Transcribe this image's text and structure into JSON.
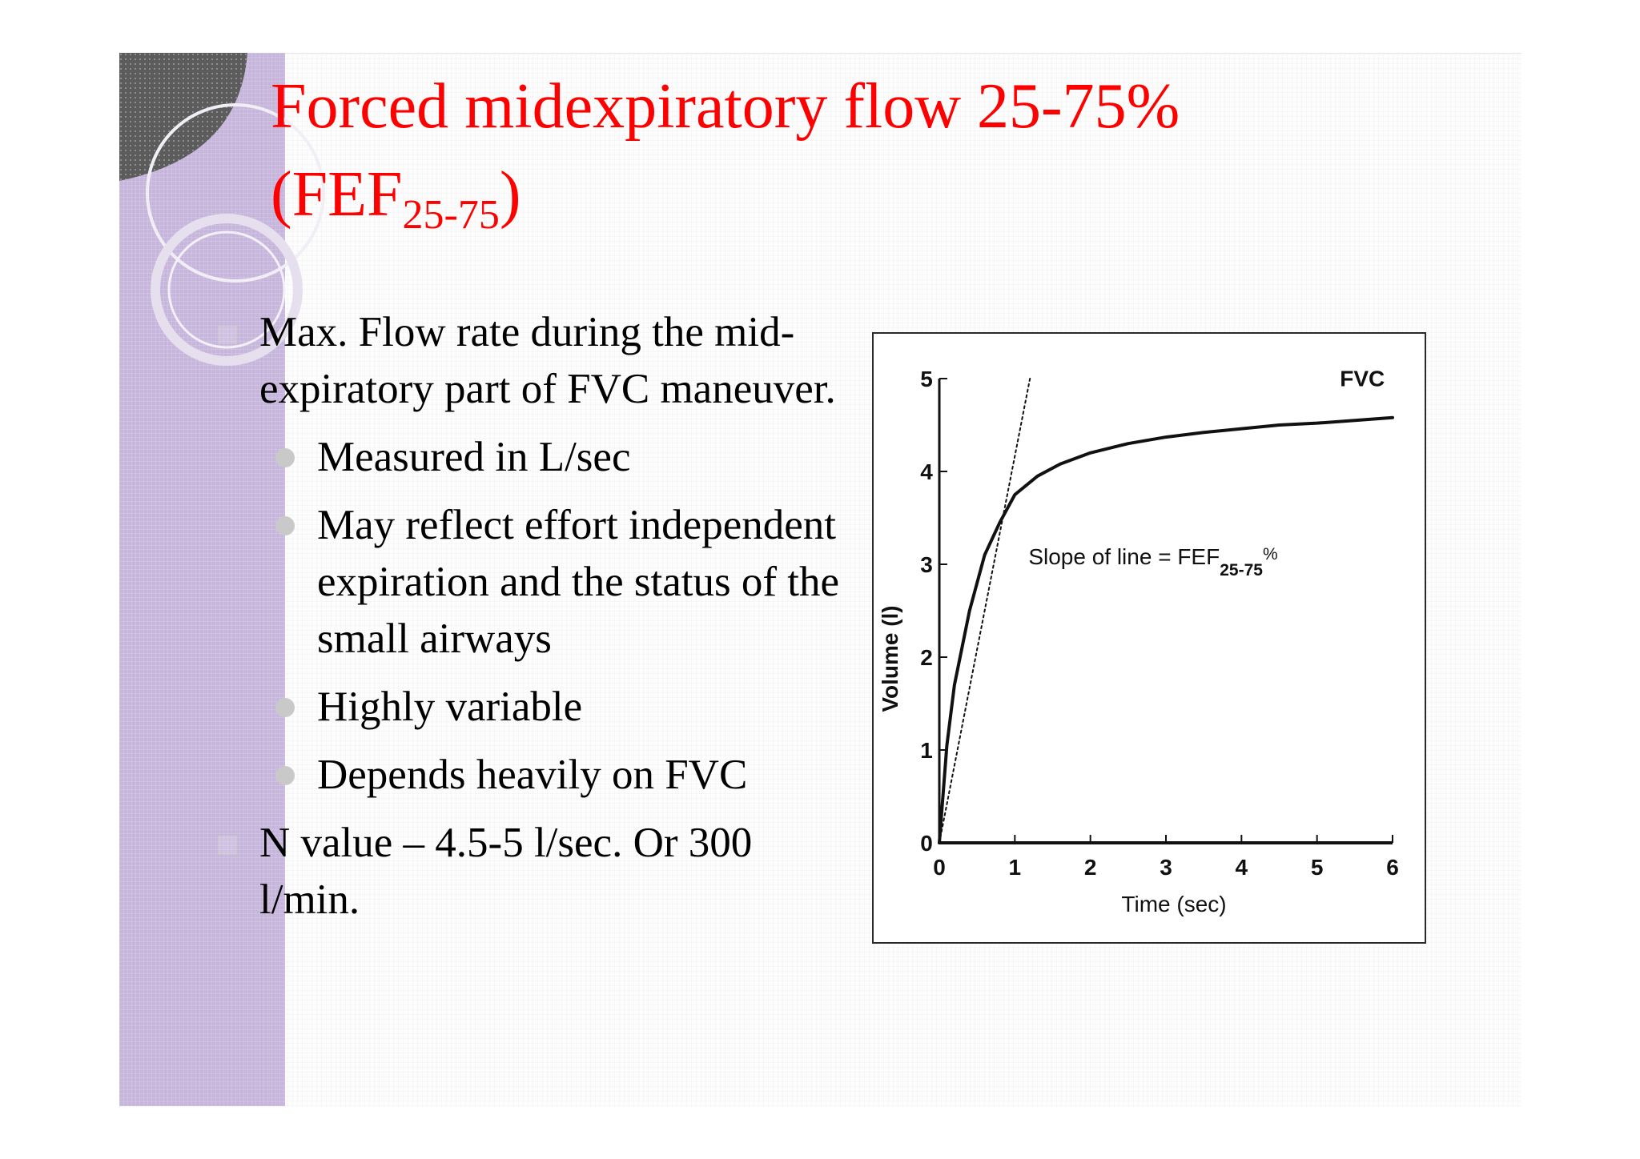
{
  "slide": {
    "title_main": "Forced midexpiratory flow 25-75%",
    "title_abbrev": "(FEF",
    "title_sub": "25-75",
    "title_close": ")",
    "bullets": [
      {
        "level": 1,
        "text": "Max. Flow rate during the mid-expiratory part of FVC maneuver."
      },
      {
        "level": 2,
        "text": "Measured in L/sec"
      },
      {
        "level": 2,
        "text": "May reflect effort independent expiration and the status of the small airways"
      },
      {
        "level": 2,
        "text": "Highly variable"
      },
      {
        "level": 2,
        "text": "Depends heavily on FVC"
      },
      {
        "level": 1,
        "text": "N value – 4.5-5 l/sec. Or 300 l/min."
      }
    ]
  },
  "chart_data": {
    "type": "line",
    "xlabel": "Time (sec)",
    "ylabel": "Volume (l)",
    "xlim": [
      0,
      6
    ],
    "ylim": [
      0,
      5
    ],
    "x_ticks": [
      0,
      1,
      2,
      3,
      4,
      5,
      6
    ],
    "y_ticks": [
      0,
      1,
      2,
      3,
      4,
      5
    ],
    "grid": false,
    "series": [
      {
        "name": "FVC",
        "style": "solid",
        "x": [
          0,
          0.1,
          0.2,
          0.4,
          0.6,
          0.8,
          1.0,
          1.3,
          1.6,
          2.0,
          2.5,
          3.0,
          3.5,
          4.0,
          4.5,
          5.0,
          5.5,
          6.0
        ],
        "y": [
          0,
          1.05,
          1.7,
          2.5,
          3.1,
          3.45,
          3.75,
          3.95,
          4.08,
          4.2,
          4.3,
          4.37,
          4.42,
          4.46,
          4.5,
          4.52,
          4.55,
          4.58
        ]
      },
      {
        "name": "",
        "style": "dotted",
        "x": [
          0,
          1.2
        ],
        "y": [
          0,
          5
        ]
      }
    ],
    "annotations": [
      {
        "text": "FVC"
      },
      {
        "text": "Slope of line = FEF",
        "sub": "25-75",
        "suffix": "%"
      }
    ],
    "colors": {
      "line": "#111111",
      "title": "#ff0000",
      "band": "#c7b6dc"
    }
  }
}
